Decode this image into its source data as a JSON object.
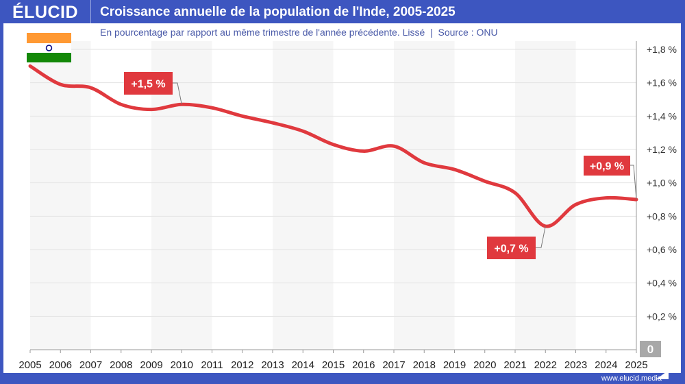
{
  "header": {
    "logo": "ÉLUCID",
    "title": "Croissance annuelle de la population de l'Inde, 2005-2025",
    "subtitle": "En pourcentage par rapport au même trimestre de l'année précédente. Lissé  |  Source : ONU"
  },
  "footer": {
    "url": "www.elucid.media"
  },
  "colors": {
    "brand": "#3d56c0",
    "line": "#e0393e",
    "label_bg": "#e0393e",
    "band": "#f6f6f6"
  },
  "flag": "india-flag",
  "chart_data": {
    "type": "line",
    "title": "Croissance annuelle de la population de l'Inde, 2005-2025",
    "x": [
      2005,
      2006,
      2007,
      2008,
      2009,
      2010,
      2011,
      2012,
      2013,
      2014,
      2015,
      2016,
      2017,
      2018,
      2019,
      2020,
      2021,
      2022,
      2023,
      2024,
      2025
    ],
    "values": [
      1.7,
      1.59,
      1.57,
      1.47,
      1.44,
      1.47,
      1.45,
      1.4,
      1.36,
      1.31,
      1.23,
      1.19,
      1.22,
      1.12,
      1.08,
      1.01,
      0.94,
      0.74,
      0.87,
      0.91,
      0.9
    ],
    "xlim": [
      2005,
      2025
    ],
    "ylim": [
      0,
      1.8
    ],
    "y_ticks": [
      "+0,2 %",
      "+0,4 %",
      "+0,6 %",
      "+0,8 %",
      "+1,0 %",
      "+1,2 %",
      "+1,4 %",
      "+1,6 %",
      "+1,8 %"
    ],
    "y_ticks_values": [
      0.2,
      0.4,
      0.6,
      0.8,
      1.0,
      1.2,
      1.4,
      1.6,
      1.8
    ],
    "zero_label": "0",
    "x_ticks": [
      "2005",
      "2006",
      "2007",
      "2008",
      "2009",
      "2010",
      "2011",
      "2012",
      "2013",
      "2014",
      "2015",
      "2016",
      "2017",
      "2018",
      "2019",
      "2020",
      "2021",
      "2022",
      "2023",
      "2024",
      "2025"
    ],
    "grid": true,
    "y_axis_side": "right",
    "annotations": [
      {
        "text": "+1,5 %",
        "x": 2010,
        "y": 1.47
      },
      {
        "text": "+0,7 %",
        "x": 2022,
        "y": 0.74
      },
      {
        "text": "+0,9 %",
        "x": 2025,
        "y": 0.9
      }
    ]
  }
}
